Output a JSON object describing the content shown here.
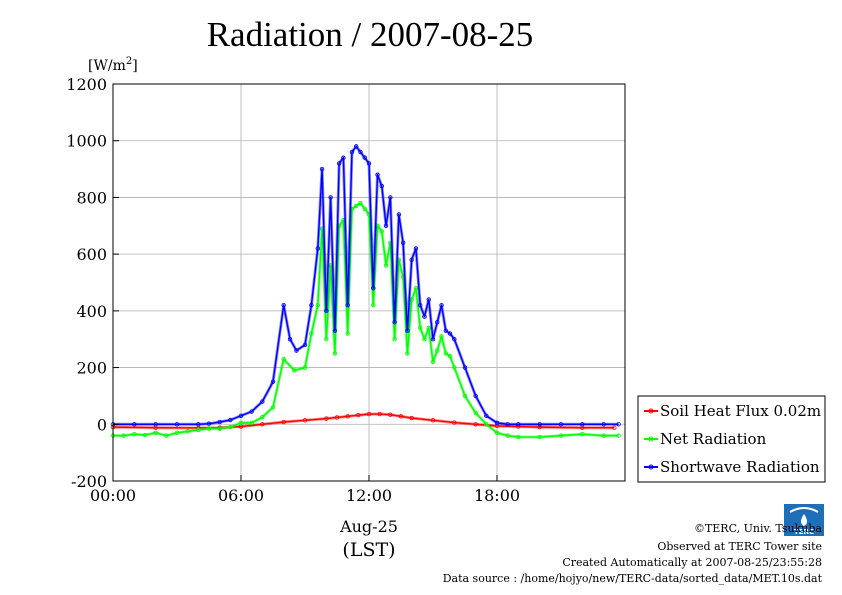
{
  "chart_data": {
    "type": "line",
    "title": "Radiation / 2007-08-25",
    "ylabel": "[W/m",
    "ylabel_sup": "2",
    "ylabel_end": "]",
    "xlabel_date": "Aug-25",
    "xlabel_tz": "(LST)",
    "ylim": [
      -200,
      1200
    ],
    "xlim": [
      0,
      24
    ],
    "yticks": [
      -200,
      0,
      200,
      400,
      600,
      800,
      1000,
      1200
    ],
    "ytick_labels": [
      "-200",
      "0",
      "200",
      "400",
      "600",
      "800",
      "1000",
      "1200"
    ],
    "xticks": [
      0,
      6,
      12,
      18
    ],
    "xtick_labels": [
      "00:00",
      "06:00",
      "12:00",
      "18:00"
    ],
    "grid": true,
    "legend_position": "right",
    "series": [
      {
        "name": "Soil Heat Flux 0.02m",
        "color": "#ff0000",
        "x": [
          0,
          2,
          4,
          5,
          6,
          7,
          8,
          9,
          10,
          10.5,
          11,
          11.5,
          12,
          12.5,
          13,
          13.5,
          14,
          15,
          16,
          17,
          18,
          19,
          20,
          22,
          23.5
        ],
        "y": [
          -10,
          -12,
          -13,
          -12,
          -8,
          0,
          8,
          14,
          20,
          24,
          28,
          32,
          36,
          36,
          34,
          28,
          22,
          14,
          6,
          0,
          -6,
          -8,
          -10,
          -12,
          -12
        ]
      },
      {
        "name": "Net Radiation",
        "color": "#00ff00",
        "x": [
          0,
          0.5,
          1,
          1.5,
          2,
          2.5,
          3,
          3.5,
          4,
          4.5,
          5,
          5.5,
          6,
          6.5,
          7,
          7.5,
          8,
          8.5,
          9,
          9.3,
          9.6,
          9.8,
          10,
          10.2,
          10.4,
          10.6,
          10.8,
          11,
          11.2,
          11.4,
          11.6,
          11.8,
          12,
          12.2,
          12.4,
          12.6,
          12.8,
          13,
          13.2,
          13.4,
          13.6,
          13.8,
          14,
          14.2,
          14.4,
          14.6,
          14.8,
          15,
          15.2,
          15.4,
          15.6,
          15.8,
          16,
          16.5,
          17,
          17.5,
          18,
          18.5,
          19,
          20,
          21,
          22,
          23,
          23.7
        ],
        "y": [
          -40,
          -40,
          -35,
          -38,
          -30,
          -40,
          -30,
          -25,
          -20,
          -15,
          -15,
          -10,
          5,
          5,
          25,
          60,
          230,
          190,
          200,
          320,
          420,
          690,
          300,
          560,
          250,
          700,
          720,
          320,
          760,
          770,
          780,
          760,
          740,
          420,
          700,
          680,
          560,
          640,
          300,
          580,
          520,
          250,
          440,
          480,
          340,
          300,
          340,
          220,
          260,
          310,
          250,
          240,
          200,
          100,
          40,
          0,
          -30,
          -40,
          -45,
          -45,
          -40,
          -35,
          -40,
          -40
        ]
      },
      {
        "name": "Shortwave Radiation",
        "color": "#0000ff",
        "x": [
          0,
          1,
          2,
          3,
          4,
          4.5,
          5,
          5.5,
          6,
          6.5,
          7,
          7.5,
          8,
          8.3,
          8.6,
          9,
          9.3,
          9.6,
          9.8,
          10,
          10.2,
          10.4,
          10.6,
          10.8,
          11,
          11.2,
          11.4,
          11.6,
          11.8,
          12,
          12.2,
          12.4,
          12.6,
          12.8,
          13,
          13.2,
          13.4,
          13.6,
          13.8,
          14,
          14.2,
          14.4,
          14.6,
          14.8,
          15,
          15.2,
          15.4,
          15.6,
          15.8,
          16,
          16.5,
          17,
          17.5,
          18,
          18.5,
          19,
          20,
          21,
          22,
          23,
          23.7
        ],
        "y": [
          0,
          0,
          0,
          0,
          0,
          2,
          8,
          15,
          30,
          45,
          80,
          150,
          420,
          300,
          260,
          280,
          420,
          620,
          900,
          400,
          800,
          330,
          920,
          940,
          420,
          960,
          980,
          960,
          940,
          920,
          480,
          880,
          840,
          700,
          800,
          360,
          740,
          640,
          330,
          580,
          620,
          420,
          380,
          440,
          300,
          360,
          420,
          330,
          320,
          300,
          200,
          100,
          30,
          5,
          0,
          0,
          0,
          0,
          0,
          0,
          0
        ]
      }
    ]
  },
  "footer": {
    "copyright": "©TERC, Univ. Tsukuba",
    "observed": "Observed at TERC Tower site",
    "created": "Created Automatically at 2007-08-25/23:55:28",
    "source": "Data source : /home/hojyo/new/TERC-data/sorted_data/MET.10s.dat"
  },
  "logo": {
    "text": "TERC",
    "color": "#1f6fb8"
  }
}
